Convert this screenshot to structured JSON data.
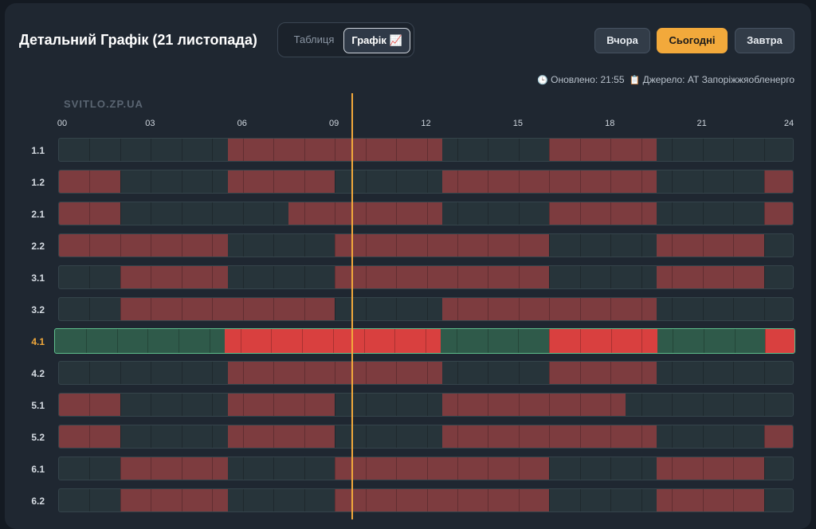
{
  "header": {
    "title": "Детальний Графік (21 листопада)",
    "view_table": "Таблиця",
    "view_chart": "Графік 📈",
    "btn_yesterday": "Вчора",
    "btn_today": "Сьогодні",
    "btn_tomorrow": "Завтра"
  },
  "meta": {
    "updated": "Оновлено: 21:55",
    "source": "Джерело: АТ Запоріжжяобленерго"
  },
  "watermark": "SVITLO.ZP.UA",
  "colors": {
    "accent": "#f2a93b",
    "outage": "#7d3c3f",
    "outage_active": "#d9403f",
    "power_active": "#2f5a4a",
    "power": "#27343a"
  },
  "hour_labels": [
    "00",
    "03",
    "06",
    "09",
    "12",
    "15",
    "18",
    "21",
    "24"
  ],
  "current_time_hours": 9.6,
  "active_group": "4.1",
  "groups": [
    {
      "label": "1.1",
      "outages": [
        [
          5.5,
          12.5
        ],
        [
          16,
          19.5
        ]
      ]
    },
    {
      "label": "1.2",
      "outages": [
        [
          0,
          2
        ],
        [
          5.5,
          9
        ],
        [
          12.5,
          19.5
        ],
        [
          23,
          24
        ]
      ]
    },
    {
      "label": "2.1",
      "outages": [
        [
          0,
          2
        ],
        [
          7.5,
          12.5
        ],
        [
          16,
          19.5
        ],
        [
          23,
          24
        ]
      ]
    },
    {
      "label": "2.2",
      "outages": [
        [
          0,
          5.5
        ],
        [
          9,
          16
        ],
        [
          19.5,
          23
        ]
      ]
    },
    {
      "label": "3.1",
      "outages": [
        [
          2,
          5.5
        ],
        [
          9,
          16
        ],
        [
          19.5,
          23
        ]
      ]
    },
    {
      "label": "3.2",
      "outages": [
        [
          2,
          9
        ],
        [
          12.5,
          19.5
        ]
      ]
    },
    {
      "label": "4.1",
      "outages": [
        [
          5.5,
          12.5
        ],
        [
          16,
          19.5
        ],
        [
          23,
          24
        ]
      ]
    },
    {
      "label": "4.2",
      "outages": [
        [
          5.5,
          12.5
        ],
        [
          16,
          19.5
        ]
      ]
    },
    {
      "label": "5.1",
      "outages": [
        [
          0,
          2
        ],
        [
          5.5,
          9
        ],
        [
          12.5,
          18.5
        ]
      ]
    },
    {
      "label": "5.2",
      "outages": [
        [
          0,
          2
        ],
        [
          5.5,
          9
        ],
        [
          12.5,
          19.5
        ],
        [
          23,
          24
        ]
      ]
    },
    {
      "label": "6.1",
      "outages": [
        [
          2,
          5.5
        ],
        [
          9,
          16
        ],
        [
          19.5,
          23
        ]
      ]
    },
    {
      "label": "6.2",
      "outages": [
        [
          2,
          5.5
        ],
        [
          9,
          16
        ],
        [
          19.5,
          23
        ]
      ]
    }
  ]
}
